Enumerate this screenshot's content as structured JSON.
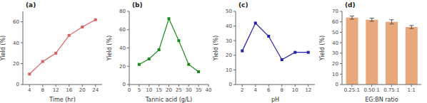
{
  "chart_data": [
    {
      "type": "line",
      "title": "(a)",
      "x": [
        4,
        8,
        12,
        16,
        20,
        24
      ],
      "values": [
        10,
        22,
        30,
        47,
        55,
        62
      ],
      "color": "#d96060",
      "marker": "square",
      "xlabel": "Time (hr)",
      "ylabel": "Yield (%)",
      "xlim": [
        2,
        26
      ],
      "ylim": [
        0,
        70
      ],
      "xticks": [
        4,
        8,
        12,
        16,
        20,
        24
      ],
      "yticks": [
        0,
        20,
        40,
        60
      ],
      "grid": false
    },
    {
      "type": "line",
      "title": "(b)",
      "x": [
        5,
        10,
        15,
        20,
        25,
        30,
        35
      ],
      "values": [
        22,
        28,
        38,
        72,
        48,
        22,
        14
      ],
      "color": "#1a8a1a",
      "marker": "square",
      "xlabel": "Tannic acid (g/L)",
      "ylabel": "Yield (%)",
      "xlim": [
        0,
        40
      ],
      "ylim": [
        0,
        80
      ],
      "xticks": [
        0,
        5,
        10,
        15,
        20,
        25,
        30,
        35,
        40
      ],
      "yticks": [
        0,
        20,
        40,
        60,
        80
      ],
      "grid": false
    },
    {
      "type": "line",
      "title": "(c)",
      "x": [
        2,
        4,
        6,
        8,
        10,
        12
      ],
      "values": [
        23,
        42,
        33,
        17,
        22,
        22
      ],
      "color": "#2222aa",
      "marker": "square",
      "xlabel": "pH",
      "ylabel": "Yield (%)",
      "xlim": [
        1,
        13
      ],
      "ylim": [
        0,
        50
      ],
      "xticks": [
        2,
        4,
        6,
        8,
        10,
        12
      ],
      "yticks": [
        0,
        10,
        20,
        30,
        40,
        50
      ],
      "grid": false
    },
    {
      "type": "bar",
      "title": "(d)",
      "categories": [
        "0.25:1",
        "0.50:1",
        "0.75:1",
        "1:1"
      ],
      "values": [
        64,
        62,
        60,
        55
      ],
      "error": [
        1.5,
        1.5,
        2.0,
        1.5
      ],
      "color": "#e8a87c",
      "xlabel": "EG:BN ratio",
      "ylabel": "Yield (%)",
      "ylim": [
        0,
        70
      ],
      "yticks": [
        0,
        10,
        20,
        30,
        40,
        50,
        60,
        70
      ],
      "grid": false
    }
  ]
}
